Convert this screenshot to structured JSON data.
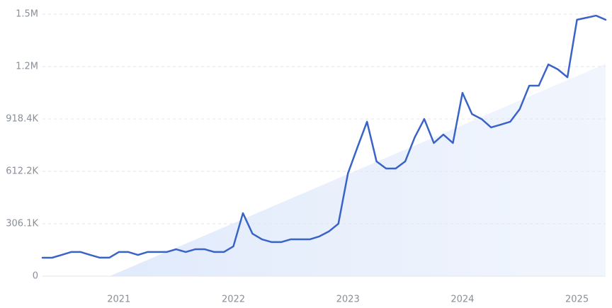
{
  "chart_data": {
    "type": "line",
    "categories": [
      null,
      null,
      null,
      null,
      null,
      null,
      null,
      null,
      "2021",
      null,
      null,
      null,
      null,
      null,
      null,
      null,
      null,
      null,
      null,
      null,
      "2022",
      null,
      null,
      null,
      null,
      null,
      null,
      null,
      null,
      null,
      null,
      null,
      "2023",
      null,
      null,
      null,
      null,
      null,
      null,
      null,
      null,
      null,
      null,
      null,
      "2024",
      null,
      null,
      null,
      null,
      null,
      null,
      null,
      null,
      null,
      null,
      null,
      "2025",
      null,
      null,
      null
    ],
    "values": [
      107600,
      107600,
      124000,
      141000,
      141000,
      124000,
      108000,
      108000,
      141000,
      141000,
      124000,
      141000,
      141000,
      141000,
      157000,
      141000,
      157000,
      157000,
      141000,
      141000,
      174000,
      368000,
      248000,
      215000,
      199000,
      199000,
      215000,
      215000,
      215000,
      232000,
      261000,
      306000,
      600000,
      753000,
      902000,
      670000,
      629000,
      629000,
      670000,
      811000,
      918000,
      778000,
      827000,
      778000,
      1071000,
      947000,
      918000,
      869000,
      885000,
      902000,
      976000,
      1113000,
      1113000,
      1237000,
      1208000,
      1162000,
      1498000,
      1510000,
      1522000,
      1498000
    ],
    "color": "#3a63c8",
    "ylim": [
      0,
      1530600
    ],
    "yticks": [
      0,
      {
        "value": 306100,
        "label": "306.1K"
      },
      {
        "value": 612200,
        "label": "612.2K"
      },
      {
        "value": 918400,
        "label": "918.4K"
      },
      {
        "value": 1224500,
        "label": "1.2M"
      },
      {
        "value": 1530600,
        "label": "1.5M"
      }
    ],
    "grid": true
  }
}
